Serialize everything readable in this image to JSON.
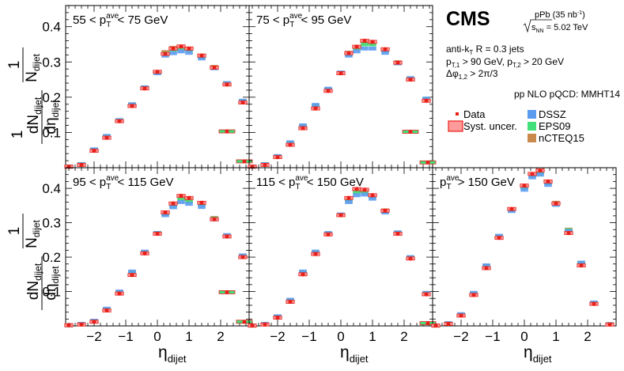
{
  "figure": {
    "experiment": "CMS",
    "collision": "pPb (35 nb",
    "collision_exp": "-1",
    "collision_close": ")",
    "sqrt_prefix": "s",
    "sqrt_sub": "NN",
    "sqrt_value": " = 5.02 TeV",
    "cuts": {
      "line1": "anti-k",
      "line1_sub": "T",
      "line1_rest": " R = 0.3 jets",
      "line2a": "p",
      "line2a_sub": "T,1",
      "line2a_rest": " > 90 GeV, p",
      "line2b_sub": "T,2",
      "line2b_rest": " > 20 GeV",
      "line3a": "Δφ",
      "line3_sub": "1,2",
      "line3_rest": " > 2π/3"
    },
    "theory_label": "pp NLO pQCD: MMHT14",
    "legend": [
      {
        "label": "Data",
        "kind": "marker",
        "color": "#e8201a"
      },
      {
        "label": "Syst. uncer.",
        "kind": "box",
        "color": "#ff6b6b"
      },
      {
        "label": "DSSZ",
        "kind": "fill",
        "color": "#5b9bef"
      },
      {
        "label": "EPS09",
        "kind": "fill",
        "color": "#41e07a"
      },
      {
        "label": "nCTEQ15",
        "kind": "fill",
        "color": "#c98a4b"
      }
    ],
    "ylabel_top": "dN",
    "ylabel_top_sub": "dijet",
    "ylabel_den": "dη",
    "ylabel_den_sub": "dijet",
    "ylabel_one": "1",
    "ylabel_n": "N",
    "ylabel_n_sub": "dijet",
    "xlabel": "η",
    "xlabel_sub": "dijet",
    "colors": {
      "data": "#e8201a",
      "dssz": "#5b9bef",
      "eps09": "#41e07a",
      "ncteq15": "#c98a4b",
      "syst": "#ff9a9a"
    }
  },
  "chart_data": [
    {
      "type": "scatter",
      "title": "55 < p_T^ave < 75 GeV",
      "title_parts": [
        "55 < p",
        "T",
        "ave",
        " < 75 GeV"
      ],
      "xlim": [
        -2.9,
        2.9
      ],
      "ylim": [
        0,
        0.46
      ],
      "xticks": [
        -2,
        -1,
        0,
        1,
        2
      ],
      "yticks": [
        0.1,
        0.2,
        0.3,
        0.4
      ],
      "x": [
        -2.8,
        -2.4,
        -2.0,
        -1.6,
        -1.2,
        -0.8,
        -0.4,
        0.0,
        0.25,
        0.5,
        0.75,
        1.0,
        1.4,
        1.8,
        2.2,
        2.7
      ],
      "data": [
        0.003,
        0.008,
        0.048,
        0.085,
        0.132,
        0.175,
        0.225,
        0.272,
        0.323,
        0.338,
        0.344,
        0.338,
        0.318,
        0.284,
        0.236,
        0.185
      ],
      "dssz": [
        0.003,
        0.01,
        0.052,
        0.09,
        0.135,
        0.18,
        0.228,
        0.268,
        0.318,
        0.325,
        0.33,
        0.326,
        0.31,
        0.282,
        0.24,
        0.19
      ],
      "eps09": [
        0.003,
        0.01,
        0.05,
        0.088,
        0.133,
        0.178,
        0.226,
        0.27,
        0.324,
        0.334,
        0.338,
        0.334,
        0.314,
        0.284,
        0.238,
        0.188
      ],
      "ncteq15": [
        0.003,
        0.01,
        0.051,
        0.089,
        0.134,
        0.179,
        0.227,
        0.271,
        0.328,
        0.34,
        0.342,
        0.338,
        0.318,
        0.286,
        0.239,
        0.189
      ],
      "tail_x": [
        2.2,
        2.75
      ],
      "tail_data": [
        0.103,
        0.018
      ]
    },
    {
      "type": "scatter",
      "title": "75 < p_T^ave < 95 GeV",
      "title_parts": [
        "75 < p",
        "T",
        "ave",
        " < 95 GeV"
      ],
      "xlim": [
        -2.9,
        2.9
      ],
      "ylim": [
        0,
        0.46
      ],
      "xticks": [
        -2,
        -1,
        0,
        1,
        2
      ],
      "yticks": [
        0.1,
        0.2,
        0.3,
        0.4
      ],
      "x": [
        -2.8,
        -2.4,
        -2.0,
        -1.6,
        -1.2,
        -0.8,
        -0.4,
        0.0,
        0.25,
        0.5,
        0.75,
        1.0,
        1.4,
        1.8,
        2.2,
        2.7
      ],
      "data": [
        0.003,
        0.008,
        0.03,
        0.065,
        0.112,
        0.168,
        0.218,
        0.268,
        0.325,
        0.343,
        0.36,
        0.357,
        0.336,
        0.298,
        0.25,
        0.19
      ],
      "dssz": [
        0.003,
        0.01,
        0.033,
        0.072,
        0.12,
        0.178,
        0.224,
        0.27,
        0.318,
        0.33,
        0.338,
        0.338,
        0.326,
        0.296,
        0.254,
        0.196
      ],
      "eps09": [
        0.003,
        0.01,
        0.031,
        0.07,
        0.116,
        0.174,
        0.221,
        0.268,
        0.322,
        0.338,
        0.35,
        0.35,
        0.332,
        0.298,
        0.252,
        0.194
      ],
      "ncteq15": [
        0.003,
        0.01,
        0.032,
        0.071,
        0.118,
        0.176,
        0.222,
        0.269,
        0.326,
        0.343,
        0.354,
        0.352,
        0.334,
        0.299,
        0.253,
        0.195
      ],
      "tail_x": [
        2.2,
        2.75
      ],
      "tail_data": [
        0.102,
        0.015
      ]
    },
    {
      "type": "scatter",
      "title": "95 < p_T^ave < 115 GeV",
      "title_parts": [
        "95 < p",
        "T",
        "ave",
        " < 115 GeV"
      ],
      "xlim": [
        -2.9,
        2.9
      ],
      "ylim": [
        0,
        0.46
      ],
      "xticks": [
        -2,
        -1,
        0,
        1,
        2
      ],
      "yticks": [
        0.1,
        0.2,
        0.3,
        0.4
      ],
      "x": [
        -2.8,
        -2.4,
        -2.0,
        -1.6,
        -1.2,
        -0.8,
        -0.4,
        0.0,
        0.25,
        0.5,
        0.75,
        1.0,
        1.4,
        1.8,
        2.2,
        2.7
      ],
      "data": [
        0.002,
        0.004,
        0.012,
        0.045,
        0.094,
        0.148,
        0.211,
        0.268,
        0.33,
        0.356,
        0.378,
        0.372,
        0.358,
        0.31,
        0.26,
        0.2
      ],
      "dssz": [
        0.002,
        0.006,
        0.015,
        0.05,
        0.1,
        0.158,
        0.216,
        0.27,
        0.322,
        0.345,
        0.36,
        0.355,
        0.346,
        0.31,
        0.264,
        0.205
      ],
      "eps09": [
        0.002,
        0.005,
        0.013,
        0.047,
        0.097,
        0.154,
        0.213,
        0.27,
        0.325,
        0.35,
        0.368,
        0.362,
        0.352,
        0.312,
        0.262,
        0.203
      ],
      "ncteq15": [
        0.002,
        0.005,
        0.014,
        0.048,
        0.098,
        0.156,
        0.214,
        0.27,
        0.328,
        0.354,
        0.372,
        0.366,
        0.356,
        0.314,
        0.263,
        0.204
      ],
      "tail_x": [
        2.2,
        2.75
      ],
      "tail_data": [
        0.098,
        0.012
      ]
    },
    {
      "type": "scatter",
      "title": "115 < p_T^ave < 150 GeV",
      "title_parts": [
        "115 < p",
        "T",
        "ave",
        " < 150 GeV"
      ],
      "xlim": [
        -2.9,
        2.9
      ],
      "ylim": [
        0,
        0.46
      ],
      "xticks": [
        -2,
        -1,
        0,
        1,
        2
      ],
      "yticks": [
        0.1,
        0.2,
        0.3,
        0.4
      ],
      "x": [
        -2.8,
        -2.4,
        -2.0,
        -1.6,
        -1.2,
        -0.8,
        -0.4,
        0.0,
        0.25,
        0.5,
        0.75,
        1.0,
        1.4,
        1.8,
        2.2,
        2.7
      ],
      "data": [
        0.001,
        0.004,
        0.024,
        0.07,
        0.15,
        0.209,
        0.266,
        0.322,
        0.372,
        0.398,
        0.396,
        0.38,
        0.335,
        0.268,
        0.196,
        0.092
      ],
      "dssz": [
        0.001,
        0.006,
        0.028,
        0.076,
        0.158,
        0.216,
        0.27,
        0.324,
        0.36,
        0.38,
        0.382,
        0.37,
        0.33,
        0.272,
        0.2,
        0.096
      ],
      "eps09": [
        0.001,
        0.005,
        0.026,
        0.073,
        0.154,
        0.212,
        0.268,
        0.323,
        0.366,
        0.388,
        0.39,
        0.376,
        0.334,
        0.27,
        0.198,
        0.094
      ],
      "ncteq15": [
        0.001,
        0.005,
        0.027,
        0.074,
        0.156,
        0.214,
        0.269,
        0.323,
        0.368,
        0.392,
        0.392,
        0.378,
        0.336,
        0.271,
        0.199,
        0.095
      ],
      "tail_x": [
        2.75
      ],
      "tail_data": [
        0.008
      ]
    },
    {
      "type": "scatter",
      "title": "p_T^ave > 150 GeV",
      "title_parts": [
        "p",
        "T",
        "ave",
        " > 150 GeV"
      ],
      "xlim": [
        -2.9,
        2.9
      ],
      "ylim": [
        0,
        0.46
      ],
      "xticks": [
        -2,
        -1,
        0,
        1,
        2
      ],
      "yticks": [
        0.1,
        0.2,
        0.3,
        0.4
      ],
      "x": [
        -2.8,
        -2.4,
        -2.0,
        -1.6,
        -1.2,
        -0.8,
        -0.4,
        0.0,
        0.25,
        0.5,
        0.75,
        1.0,
        1.4,
        1.8,
        2.2,
        2.7
      ],
      "data": [
        0.001,
        0.006,
        0.03,
        0.09,
        0.168,
        0.256,
        0.34,
        0.408,
        0.442,
        0.452,
        0.42,
        0.356,
        0.27,
        0.176,
        0.064,
        0.004
      ],
      "dssz": [
        0.001,
        0.008,
        0.034,
        0.096,
        0.176,
        0.262,
        0.334,
        0.396,
        0.432,
        0.44,
        0.41,
        0.352,
        0.276,
        0.184,
        0.068,
        0.005
      ],
      "eps09": [
        0.001,
        0.007,
        0.032,
        0.093,
        0.172,
        0.259,
        0.338,
        0.402,
        0.438,
        0.446,
        0.416,
        0.356,
        0.278,
        0.182,
        0.066,
        0.005
      ],
      "ncteq15": [
        0.001,
        0.007,
        0.033,
        0.094,
        0.174,
        0.26,
        0.338,
        0.404,
        0.44,
        0.448,
        0.418,
        0.358,
        0.28,
        0.183,
        0.067,
        0.005
      ],
      "tail_x": [],
      "tail_data": []
    }
  ]
}
